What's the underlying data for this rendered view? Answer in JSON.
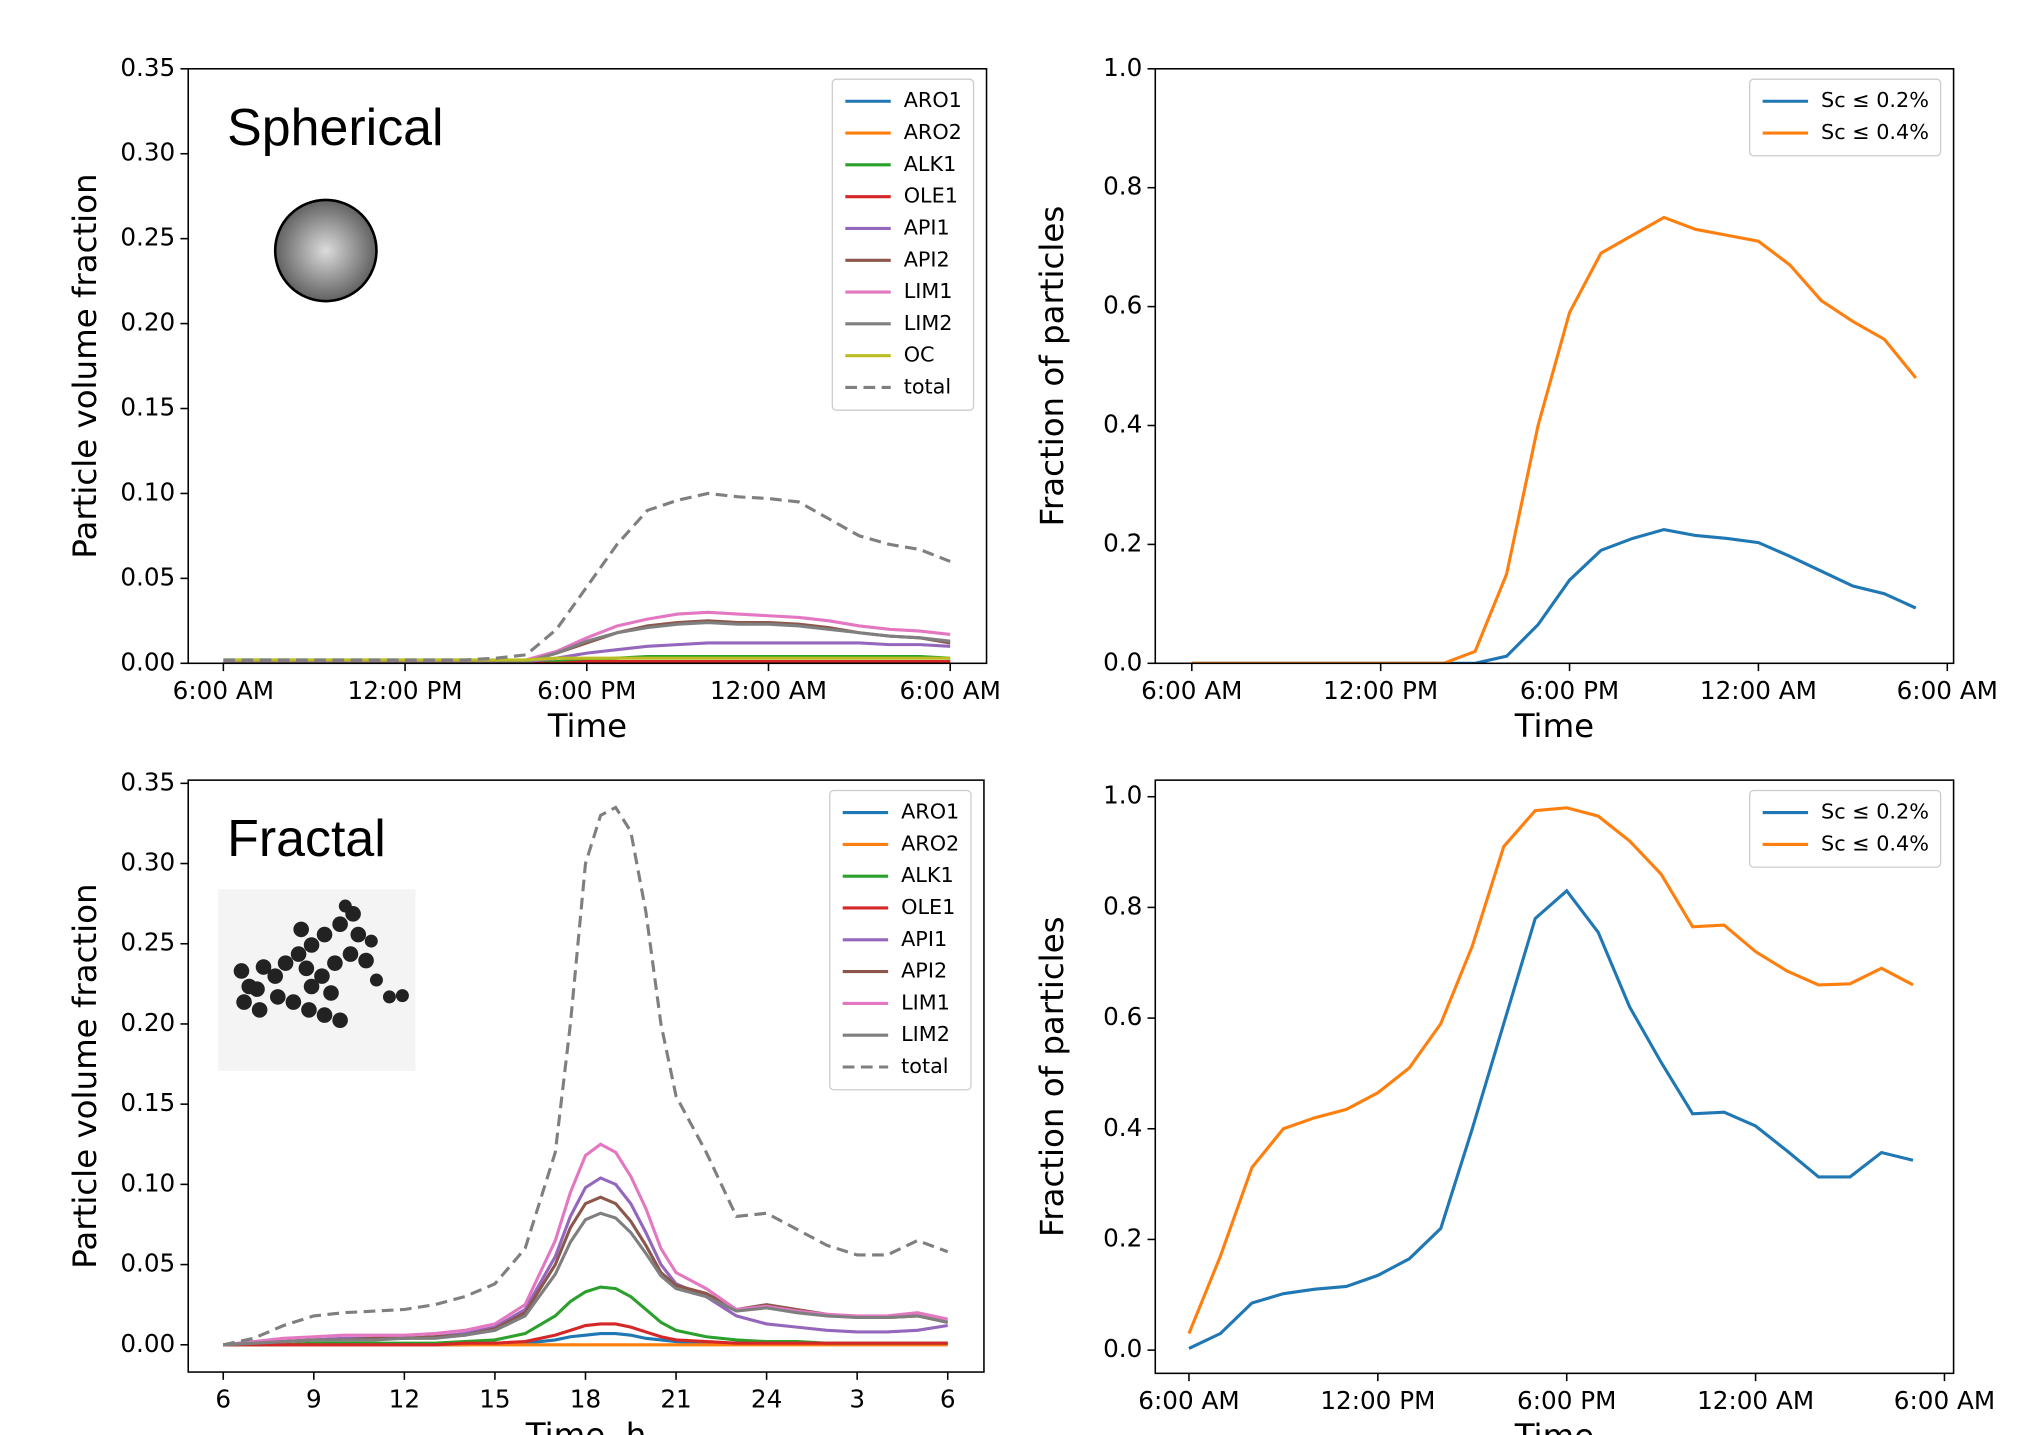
{
  "chart_data": [
    {
      "type": "line",
      "annotation": "Spherical",
      "xlabel": "Time",
      "ylabel": "Particle volume fraction",
      "legend": "upper right",
      "x": [
        6,
        9,
        12,
        14,
        15,
        16,
        17,
        18,
        19,
        20,
        21,
        22,
        23,
        24,
        25,
        26,
        27,
        28,
        29,
        30
      ],
      "xlim": [
        4.84,
        31.2
      ],
      "xticks": [
        {
          "value": 6,
          "label": "6:00 AM"
        },
        {
          "value": 12,
          "label": "12:00 PM"
        },
        {
          "value": 18,
          "label": "6:00 PM"
        },
        {
          "value": 24,
          "label": "12:00 AM"
        },
        {
          "value": 30,
          "label": "6:00 AM"
        }
      ],
      "ylim": [
        0,
        0.35
      ],
      "yticks": [
        {
          "value": 0,
          "label": "0.00"
        },
        0.05,
        {
          "value": 0.1,
          "label": "0.10"
        },
        0.15,
        {
          "value": 0.2,
          "label": "0.20"
        },
        0.25,
        {
          "value": 0.3,
          "label": "0.30"
        },
        0.35
      ],
      "series": [
        {
          "name": "ARO1",
          "color": "#1f77b4",
          "values": [
            0,
            0,
            0,
            0,
            0,
            0,
            0,
            0.001,
            0.001,
            0.001,
            0.001,
            0.001,
            0.001,
            0.001,
            0.001,
            0.001,
            0.001,
            0.001,
            0.001,
            0.001
          ]
        },
        {
          "name": "ARO2",
          "color": "#ff7f0e",
          "values": [
            0,
            0,
            0,
            0,
            0,
            0,
            0,
            0,
            0,
            0,
            0,
            0,
            0,
            0,
            0,
            0,
            0,
            0,
            0,
            0
          ]
        },
        {
          "name": "ALK1",
          "color": "#2ca02c",
          "values": [
            0,
            0,
            0,
            0,
            0,
            0,
            0.001,
            0.002,
            0.003,
            0.004,
            0.004,
            0.004,
            0.004,
            0.004,
            0.004,
            0.004,
            0.004,
            0.004,
            0.004,
            0.003
          ]
        },
        {
          "name": "OLE1",
          "color": "#d62728",
          "values": [
            0,
            0,
            0,
            0,
            0,
            0,
            0,
            0.001,
            0.001,
            0.001,
            0.001,
            0.001,
            0.001,
            0.001,
            0.001,
            0.001,
            0.001,
            0.001,
            0.001,
            0.001
          ]
        },
        {
          "name": "API1",
          "color": "#9467bd",
          "values": [
            0,
            0,
            0,
            0,
            0,
            0.001,
            0.003,
            0.006,
            0.008,
            0.01,
            0.011,
            0.012,
            0.012,
            0.012,
            0.012,
            0.012,
            0.012,
            0.011,
            0.011,
            0.01
          ]
        },
        {
          "name": "API2",
          "color": "#8c564b",
          "values": [
            0,
            0,
            0,
            0,
            0,
            0.001,
            0.006,
            0.012,
            0.018,
            0.022,
            0.024,
            0.025,
            0.024,
            0.024,
            0.023,
            0.021,
            0.018,
            0.016,
            0.015,
            0.012
          ]
        },
        {
          "name": "LIM1",
          "color": "#e377c2",
          "values": [
            0,
            0,
            0,
            0,
            0,
            0.002,
            0.007,
            0.015,
            0.022,
            0.026,
            0.029,
            0.03,
            0.029,
            0.028,
            0.027,
            0.025,
            0.022,
            0.02,
            0.019,
            0.017
          ]
        },
        {
          "name": "LIM2",
          "color": "#7f7f7f",
          "values": [
            0,
            0,
            0,
            0,
            0,
            0.001,
            0.006,
            0.013,
            0.018,
            0.021,
            0.023,
            0.024,
            0.023,
            0.023,
            0.022,
            0.02,
            0.018,
            0.016,
            0.015,
            0.013
          ]
        },
        {
          "name": "OC",
          "color": "#bcbd22",
          "values": [
            0.002,
            0.002,
            0.002,
            0.002,
            0.002,
            0.002,
            0.003,
            0.003,
            0.003,
            0.003,
            0.003,
            0.003,
            0.003,
            0.003,
            0.003,
            0.003,
            0.003,
            0.003,
            0.003,
            0.003
          ]
        },
        {
          "name": "total",
          "color": "#7f7f7f",
          "linestyle": "dashed",
          "values": [
            0.002,
            0.002,
            0.002,
            0.002,
            0.003,
            0.005,
            0.02,
            0.045,
            0.07,
            0.09,
            0.096,
            0.1,
            0.098,
            0.097,
            0.095,
            0.085,
            0.075,
            0.07,
            0.067,
            0.06
          ]
        }
      ]
    },
    {
      "type": "line",
      "xlabel": "Time",
      "ylabel": "Fraction of particles",
      "legend": "upper right",
      "x": [
        6,
        14,
        15,
        16,
        17,
        18,
        19,
        20,
        21,
        22,
        23,
        24,
        25,
        26,
        27,
        28,
        29
      ],
      "xlim": [
        4.84,
        30.2
      ],
      "xticks": [
        {
          "value": 6,
          "label": "6:00 AM"
        },
        {
          "value": 12,
          "label": "12:00 PM"
        },
        {
          "value": 18,
          "label": "6:00 PM"
        },
        {
          "value": 24,
          "label": "12:00 AM"
        },
        {
          "value": 30,
          "label": "6:00 AM"
        }
      ],
      "ylim": [
        0,
        1
      ],
      "yticks": [
        {
          "value": 0,
          "label": "0.0"
        },
        0.2,
        0.4,
        0.6,
        0.8,
        {
          "value": 1,
          "label": "1.0"
        }
      ],
      "series": [
        {
          "name": "Sc ≤ 0.2%",
          "color": "#1f77b4",
          "values": [
            0,
            0,
            0,
            0.012,
            0.065,
            0.14,
            0.19,
            0.21,
            0.225,
            0.215,
            0.21,
            0.203,
            0.18,
            0.155,
            0.13,
            0.117,
            0.093
          ]
        },
        {
          "name": "Sc ≤ 0.4%",
          "color": "#ff7f0e",
          "values": [
            0,
            0,
            0.02,
            0.15,
            0.4,
            0.59,
            0.69,
            0.72,
            0.75,
            0.73,
            0.72,
            0.71,
            0.67,
            0.61,
            0.575,
            0.545,
            0.48
          ]
        }
      ]
    },
    {
      "type": "line",
      "annotation": "Fractal",
      "xlabel": "Time, h",
      "ylabel": "Particle volume fraction",
      "legend": "upper right",
      "x": [
        6,
        7,
        8,
        9,
        10,
        11,
        12,
        13,
        14,
        15,
        16,
        17,
        17.5,
        18,
        18.5,
        19,
        19.5,
        20,
        20.5,
        21,
        22,
        23,
        24,
        25,
        26,
        27,
        28,
        29,
        30
      ],
      "xlim": [
        4.84,
        31.2
      ],
      "xticks": [
        6,
        9,
        12,
        15,
        18,
        21,
        24,
        {
          "value": 27,
          "label": "3"
        },
        {
          "value": 30,
          "label": "6"
        }
      ],
      "ylim": [
        -0.017,
        0.352
      ],
      "yticks": [
        {
          "value": 0,
          "label": "0.00"
        },
        0.05,
        {
          "value": 0.1,
          "label": "0.10"
        },
        0.15,
        {
          "value": 0.2,
          "label": "0.20"
        },
        0.25,
        {
          "value": 0.3,
          "label": "0.30"
        },
        0.35
      ],
      "series": [
        {
          "name": "ARO1",
          "color": "#1f77b4",
          "values": [
            0,
            0,
            0,
            0,
            0,
            0,
            0,
            0,
            0,
            0.001,
            0.001,
            0.003,
            0.005,
            0.006,
            0.007,
            0.007,
            0.006,
            0.004,
            0.003,
            0.002,
            0.001,
            0.001,
            0.001,
            0.001,
            0.001,
            0.001,
            0.001,
            0.001,
            0.001
          ]
        },
        {
          "name": "ARO2",
          "color": "#ff7f0e",
          "values": [
            0,
            0,
            0,
            0,
            0,
            0,
            0,
            0,
            0,
            0,
            0,
            0,
            0,
            0,
            0,
            0,
            0,
            0,
            0,
            0,
            0,
            0,
            0,
            0,
            0,
            0,
            0,
            0,
            0
          ]
        },
        {
          "name": "ALK1",
          "color": "#2ca02c",
          "values": [
            0,
            0,
            0,
            0.001,
            0.001,
            0.001,
            0.001,
            0.001,
            0.002,
            0.003,
            0.007,
            0.018,
            0.027,
            0.033,
            0.036,
            0.035,
            0.03,
            0.022,
            0.014,
            0.009,
            0.005,
            0.003,
            0.002,
            0.002,
            0.001,
            0.001,
            0.001,
            0.001,
            0.001
          ]
        },
        {
          "name": "OLE1",
          "color": "#d62728",
          "values": [
            0,
            0,
            0,
            0,
            0,
            0,
            0,
            0,
            0.001,
            0.001,
            0.002,
            0.006,
            0.009,
            0.012,
            0.013,
            0.013,
            0.011,
            0.008,
            0.005,
            0.003,
            0.002,
            0.001,
            0.001,
            0.001,
            0.001,
            0.001,
            0.001,
            0.001,
            0.001
          ]
        },
        {
          "name": "API1",
          "color": "#9467bd",
          "values": [
            0,
            0.001,
            0.002,
            0.003,
            0.004,
            0.004,
            0.004,
            0.005,
            0.007,
            0.011,
            0.022,
            0.055,
            0.08,
            0.098,
            0.104,
            0.1,
            0.088,
            0.07,
            0.05,
            0.038,
            0.03,
            0.018,
            0.013,
            0.011,
            0.009,
            0.008,
            0.008,
            0.009,
            0.012
          ]
        },
        {
          "name": "API2",
          "color": "#8c564b",
          "values": [
            0,
            0.001,
            0.002,
            0.003,
            0.003,
            0.004,
            0.004,
            0.005,
            0.006,
            0.01,
            0.02,
            0.05,
            0.073,
            0.088,
            0.092,
            0.088,
            0.077,
            0.062,
            0.045,
            0.037,
            0.032,
            0.022,
            0.025,
            0.022,
            0.019,
            0.017,
            0.017,
            0.018,
            0.014
          ]
        },
        {
          "name": "LIM1",
          "color": "#e377c2",
          "values": [
            0,
            0.002,
            0.004,
            0.005,
            0.006,
            0.006,
            0.006,
            0.007,
            0.009,
            0.013,
            0.025,
            0.065,
            0.095,
            0.118,
            0.125,
            0.12,
            0.105,
            0.085,
            0.06,
            0.045,
            0.035,
            0.022,
            0.024,
            0.021,
            0.019,
            0.018,
            0.018,
            0.02,
            0.016
          ]
        },
        {
          "name": "LIM2",
          "color": "#7f7f7f",
          "values": [
            0,
            0.001,
            0.002,
            0.003,
            0.003,
            0.003,
            0.004,
            0.004,
            0.006,
            0.009,
            0.018,
            0.044,
            0.064,
            0.078,
            0.082,
            0.079,
            0.07,
            0.057,
            0.043,
            0.035,
            0.03,
            0.021,
            0.023,
            0.02,
            0.018,
            0.017,
            0.017,
            0.018,
            0.014
          ]
        },
        {
          "name": "total",
          "color": "#7f7f7f",
          "linestyle": "dashed",
          "values": [
            0,
            0.004,
            0.012,
            0.018,
            0.02,
            0.021,
            0.022,
            0.025,
            0.03,
            0.038,
            0.06,
            0.12,
            0.2,
            0.3,
            0.33,
            0.335,
            0.32,
            0.27,
            0.2,
            0.155,
            0.12,
            0.08,
            0.082,
            0.072,
            0.062,
            0.056,
            0.056,
            0.065,
            0.058
          ]
        }
      ]
    },
    {
      "type": "line",
      "xlabel": "Time",
      "ylabel": "Fraction of particles",
      "legend": "upper right",
      "x": [
        6,
        7,
        8,
        9,
        10,
        11,
        12,
        13,
        14,
        15,
        16,
        17,
        18,
        19,
        20,
        21,
        22,
        23,
        24,
        25,
        26,
        27,
        28,
        29
      ],
      "xlim": [
        4.93,
        30.29
      ],
      "xticks": [
        {
          "value": 6,
          "label": "6:00 AM"
        },
        {
          "value": 12,
          "label": "12:00 PM"
        },
        {
          "value": 18,
          "label": "6:00 PM"
        },
        {
          "value": 24,
          "label": "12:00 AM"
        },
        {
          "value": 30,
          "label": "6:00 AM"
        }
      ],
      "ylim": [
        -0.042,
        1.03
      ],
      "yticks": [
        {
          "value": 0,
          "label": "0.0"
        },
        0.2,
        0.4,
        0.6,
        0.8,
        {
          "value": 1,
          "label": "1.0"
        }
      ],
      "series": [
        {
          "name": "Sc ≤ 0.2%",
          "color": "#1f77b4",
          "values": [
            0.003,
            0.03,
            0.085,
            0.102,
            0.11,
            0.115,
            0.135,
            0.165,
            0.22,
            0.4,
            0.59,
            0.78,
            0.83,
            0.755,
            0.62,
            0.52,
            0.427,
            0.43,
            0.405,
            0.36,
            0.313,
            0.313,
            0.357,
            0.343
          ]
        },
        {
          "name": "Sc ≤ 0.4%",
          "color": "#ff7f0e",
          "values": [
            0.03,
            0.17,
            0.33,
            0.4,
            0.42,
            0.435,
            0.465,
            0.51,
            0.59,
            0.73,
            0.91,
            0.975,
            0.98,
            0.965,
            0.92,
            0.86,
            0.765,
            0.768,
            0.72,
            0.685,
            0.66,
            0.662,
            0.69,
            0.66
          ]
        }
      ]
    }
  ]
}
